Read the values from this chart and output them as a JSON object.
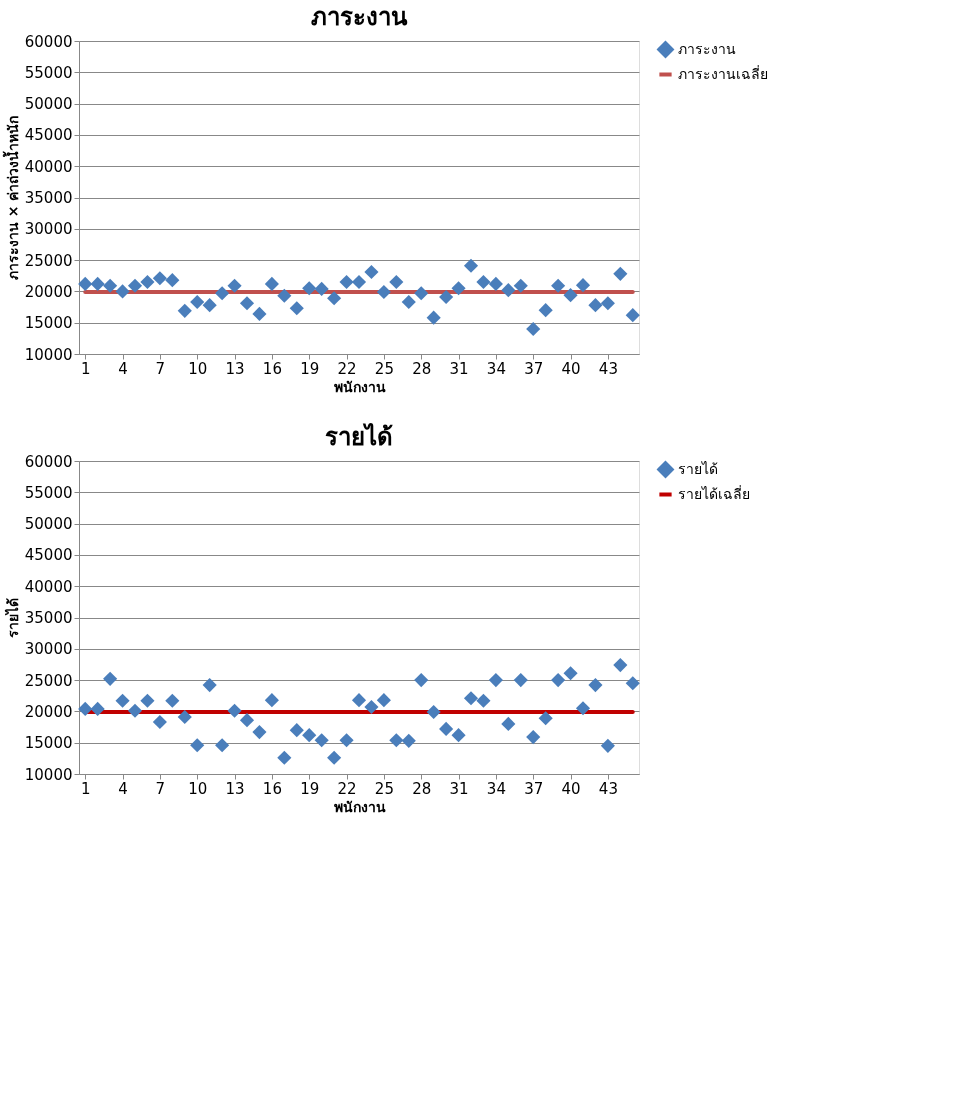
{
  "chart_data": [
    {
      "type": "scatter",
      "title": "ภาระงาน",
      "xlabel": "พนักงาน",
      "ylabel": "ภาระงาน × ค่าถ่วงน้ำหนัก",
      "grid": "y",
      "legend": "right",
      "xlim": [
        0.5,
        45.5
      ],
      "xticks": [
        1,
        4,
        7,
        10,
        13,
        16,
        19,
        22,
        25,
        28,
        31,
        34,
        37,
        40,
        43
      ],
      "ylim": [
        10000,
        60000
      ],
      "yticks": [
        10000,
        15000,
        20000,
        25000,
        30000,
        35000,
        40000,
        45000,
        50000,
        55000,
        60000
      ],
      "x": [
        1,
        2,
        3,
        4,
        5,
        6,
        7,
        8,
        9,
        10,
        11,
        12,
        13,
        14,
        15,
        16,
        17,
        18,
        19,
        20,
        21,
        22,
        23,
        24,
        25,
        26,
        27,
        28,
        29,
        30,
        31,
        32,
        33,
        34,
        35,
        36,
        37,
        38,
        39,
        40,
        41,
        42,
        43,
        44,
        45
      ],
      "series": [
        {
          "name": "ภาระงาน",
          "marker": "diamond",
          "color": "#4a7ebb",
          "values": [
            21200,
            21200,
            20900,
            20000,
            20900,
            21500,
            22100,
            21800,
            16900,
            18300,
            17800,
            19700,
            20900,
            18100,
            16400,
            21200,
            19300,
            17300,
            20500,
            20400,
            18900,
            21500,
            21500,
            23100,
            19900,
            21500,
            18300,
            19700,
            15800,
            19100,
            20500,
            24100,
            21500,
            21200,
            20200,
            20900,
            14000,
            17000,
            20900,
            19400,
            21000,
            17800,
            18100,
            22800,
            16200
          ]
        },
        {
          "name": "ภาระงานเฉลี่ย",
          "type": "line",
          "marker": "none",
          "color": "#c0504d",
          "values": [
            19900,
            19900,
            19900,
            19900,
            19900,
            19900,
            19900,
            19900,
            19900,
            19900,
            19900,
            19900,
            19900,
            19900,
            19900,
            19900,
            19900,
            19900,
            19900,
            19900,
            19900,
            19900,
            19900,
            19900,
            19900,
            19900,
            19900,
            19900,
            19900,
            19900,
            19900,
            19900,
            19900,
            19900,
            19900,
            19900,
            19900,
            19900,
            19900,
            19900,
            19900,
            19900,
            19900,
            19900,
            19900
          ]
        }
      ]
    },
    {
      "type": "scatter",
      "title": "รายได้",
      "xlabel": "พนักงาน",
      "ylabel": "รายได้",
      "grid": "y",
      "legend": "right",
      "xlim": [
        0.5,
        45.5
      ],
      "xticks": [
        1,
        4,
        7,
        10,
        13,
        16,
        19,
        22,
        25,
        28,
        31,
        34,
        37,
        40,
        43
      ],
      "ylim": [
        10000,
        60000
      ],
      "yticks": [
        10000,
        15000,
        20000,
        25000,
        30000,
        35000,
        40000,
        45000,
        50000,
        55000,
        60000
      ],
      "x": [
        1,
        2,
        3,
        4,
        5,
        6,
        7,
        8,
        9,
        10,
        11,
        12,
        13,
        14,
        15,
        16,
        17,
        18,
        19,
        20,
        21,
        22,
        23,
        24,
        25,
        26,
        27,
        28,
        29,
        30,
        31,
        32,
        33,
        34,
        35,
        36,
        37,
        38,
        39,
        40,
        41,
        42,
        43,
        44,
        45
      ],
      "series": [
        {
          "name": "รายได้",
          "marker": "diamond",
          "color": "#4a7ebb",
          "values": [
            20400,
            20400,
            25200,
            21700,
            20100,
            21700,
            18300,
            21700,
            19100,
            14600,
            24200,
            14600,
            20100,
            18600,
            16700,
            21800,
            12600,
            17000,
            16200,
            15400,
            12600,
            15400,
            21800,
            20700,
            21800,
            15400,
            15300,
            25000,
            19900,
            17200,
            16200,
            22100,
            21700,
            25000,
            18000,
            25000,
            15900,
            18900,
            25000,
            26100,
            20500,
            24200,
            14500,
            27400,
            24500
          ]
        },
        {
          "name": "รายได้เฉลี่ย",
          "type": "line",
          "marker": "none",
          "color": "#c00000",
          "values": [
            19900,
            19900,
            19900,
            19900,
            19900,
            19900,
            19900,
            19900,
            19900,
            19900,
            19900,
            19900,
            19900,
            19900,
            19900,
            19900,
            19900,
            19900,
            19900,
            19900,
            19900,
            19900,
            19900,
            19900,
            19900,
            19900,
            19900,
            19900,
            19900,
            19900,
            19900,
            19900,
            19900,
            19900,
            19900,
            19900,
            19900,
            19900,
            19900,
            19900,
            19900,
            19900,
            19900,
            19900,
            19900
          ]
        }
      ]
    }
  ]
}
